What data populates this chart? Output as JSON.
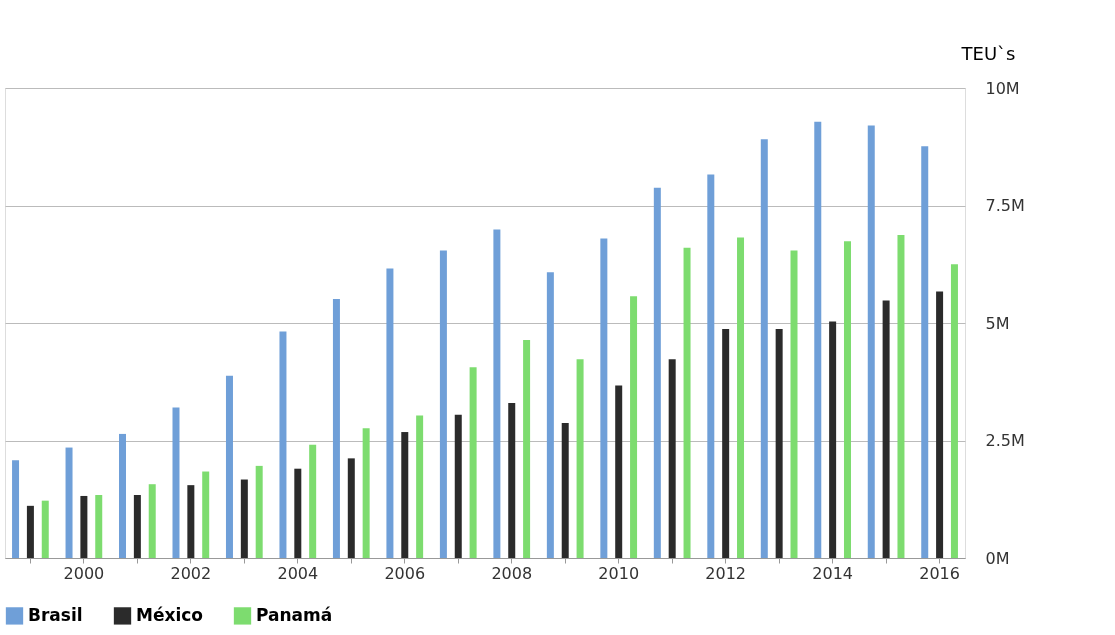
{
  "chart_data": {
    "type": "bar",
    "ylabel": "TEU`s",
    "categories": [
      null,
      "2000",
      null,
      "2002",
      null,
      "2004",
      null,
      "2006",
      null,
      "2008",
      null,
      "2010",
      null,
      "2012",
      null,
      "2014",
      null,
      "2016"
    ],
    "series": [
      {
        "name": "Brasil",
        "color": "#6f9fd8",
        "values": [
          2.08,
          2.35,
          2.64,
          3.2,
          3.88,
          4.82,
          5.51,
          6.16,
          6.54,
          6.99,
          6.08,
          6.8,
          7.88,
          8.16,
          8.91,
          9.28,
          9.2,
          8.76
        ]
      },
      {
        "name": "México",
        "color": "#2b2b2b",
        "values": [
          1.11,
          1.32,
          1.34,
          1.55,
          1.67,
          1.9,
          2.12,
          2.68,
          3.05,
          3.3,
          2.87,
          3.67,
          4.23,
          4.87,
          4.87,
          5.03,
          5.48,
          5.67
        ]
      },
      {
        "name": "Panamá",
        "color": "#7ddc6f",
        "values": [
          1.22,
          1.34,
          1.57,
          1.84,
          1.96,
          2.41,
          2.76,
          3.03,
          4.06,
          4.64,
          4.23,
          5.57,
          6.6,
          6.82,
          6.54,
          6.74,
          6.87,
          6.25
        ]
      }
    ],
    "ylim": [
      0,
      10
    ],
    "yticks": [
      {
        "value": 0,
        "label": "0M"
      },
      {
        "value": 2.5,
        "label": "2.5M"
      },
      {
        "value": 5,
        "label": "5M"
      },
      {
        "value": 7.5,
        "label": "7.5M"
      },
      {
        "value": 10,
        "label": "10M"
      }
    ],
    "grid": "y",
    "legend": "bottom"
  }
}
